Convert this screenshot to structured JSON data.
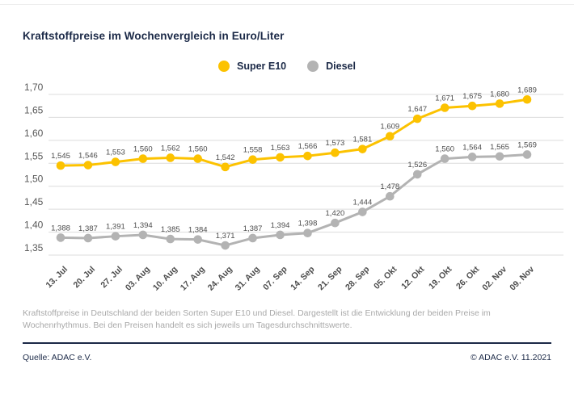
{
  "header": {
    "title": "Kraftstoffpreise im Wochenvergleich in Euro/Liter"
  },
  "legend": {
    "items": [
      {
        "label": "Super E10",
        "color": "#FCC200"
      },
      {
        "label": "Diesel",
        "color": "#B3B3B3"
      }
    ]
  },
  "chart_data": {
    "type": "line",
    "title": "Kraftstoffpreise im Wochenvergleich in Euro/Liter",
    "xlabel": "",
    "ylabel": "Euro/Liter",
    "x": [
      "13. Jul",
      "20. Jul",
      "27. Jul",
      "03. Aug",
      "10. Aug",
      "17. Aug",
      "24. Aug",
      "31. Aug",
      "07. Sep",
      "14. Sep",
      "21. Sep",
      "28. Sep",
      "05. Okt",
      "12. Okt",
      "19. Okt",
      "26. Okt",
      "02. Nov",
      "09. Nov"
    ],
    "series": [
      {
        "name": "Super E10",
        "color": "#FCC200",
        "values": [
          1.545,
          1.546,
          1.553,
          1.56,
          1.562,
          1.56,
          1.542,
          1.558,
          1.563,
          1.566,
          1.573,
          1.581,
          1.609,
          1.647,
          1.671,
          1.675,
          1.68,
          1.689
        ]
      },
      {
        "name": "Diesel",
        "color": "#B3B3B3",
        "values": [
          1.388,
          1.387,
          1.391,
          1.394,
          1.385,
          1.384,
          1.371,
          1.387,
          1.394,
          1.398,
          1.42,
          1.444,
          1.478,
          1.526,
          1.56,
          1.564,
          1.565,
          1.569
        ]
      }
    ],
    "ylim": [
      1.35,
      1.7
    ],
    "ytick_step": 0.05,
    "ytick_labels": [
      "1,70",
      "1,65",
      "1,60",
      "1,55",
      "1,50",
      "1,45",
      "1,40",
      "1,35"
    ],
    "grid": true,
    "legend_position": "top-center",
    "value_labels": true,
    "decimal_separator": ","
  },
  "caption": "Kraftstoffpreise in Deutschland der beiden Sorten Super E10 und Diesel. Dargestellt ist die Entwicklung der beiden Preise im Wochenrhythmus. Bei den Preisen handelt es sich jeweils um Tagesdurchschnittswerte.",
  "footer": {
    "source": "Quelle: ADAC e.V.",
    "copyright": "© ADAC e.V. 11.2021"
  },
  "colors": {
    "navy": "#1B2947",
    "grid_line": "#DCDCDC",
    "axis_tick_text": "#575757",
    "data_label_text": "#4C4C4C",
    "caption_text": "#A9A9A9"
  }
}
